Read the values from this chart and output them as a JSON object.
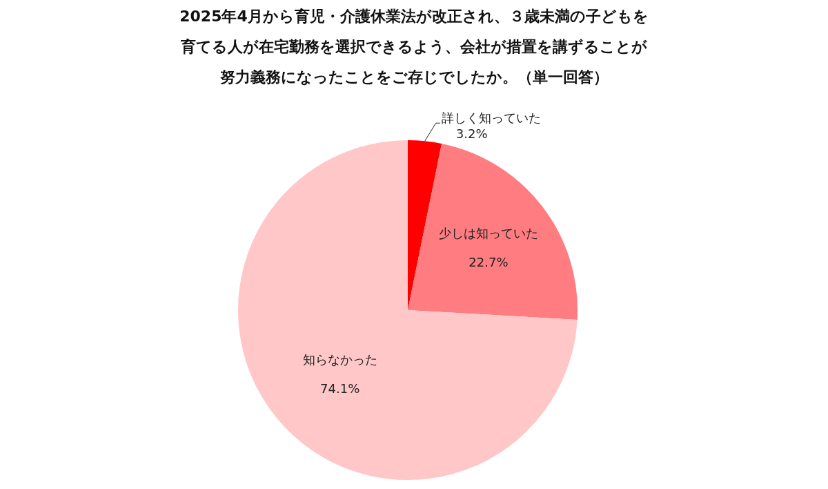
{
  "chart_data": {
    "type": "pie",
    "title": "2025年4月から育児・介護休業法が改正され、３歳未満の子どもを育てる人が在宅勤務を選択できるよう、会社が措置を講ずることが努力義務になったことをご存じでしたか。（単一回答）",
    "categories": [
      "詳しく知っていた",
      "少しは知っていた",
      "知らなかった"
    ],
    "values": [
      3.2,
      22.7,
      74.1
    ],
    "colors": [
      "#ff0000",
      "#ff7c80",
      "#ffc7c7"
    ],
    "data_labels": true,
    "value_labels": [
      "3.2%",
      "22.7%",
      "74.1%"
    ]
  }
}
